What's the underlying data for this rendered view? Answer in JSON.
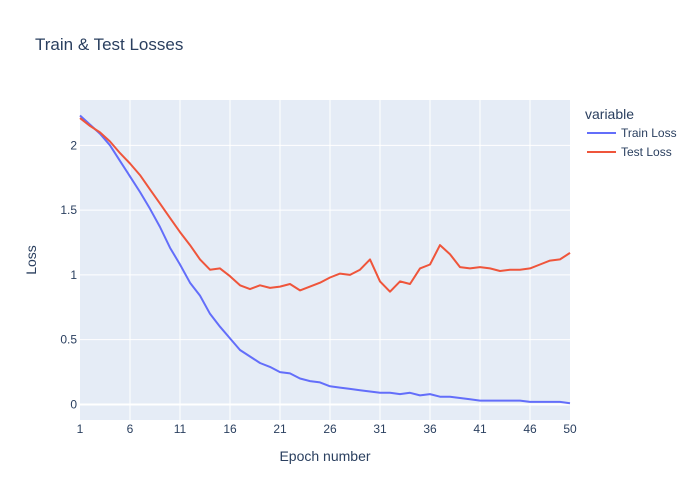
{
  "chart_data": {
    "type": "line",
    "title": "Train & Test Losses",
    "xlabel": "Epoch number",
    "ylabel": "Loss",
    "xlim": [
      1,
      50
    ],
    "ylim": [
      -0.12,
      2.35
    ],
    "xticks": [
      1,
      6,
      11,
      16,
      21,
      26,
      31,
      36,
      41,
      46,
      50
    ],
    "xtick_labels": [
      "1",
      "6",
      "11",
      "16",
      "21",
      "26",
      "31",
      "36",
      "41",
      "46",
      "50"
    ],
    "yticks": [
      0,
      0.5,
      1,
      1.5,
      2
    ],
    "ytick_labels": [
      "0",
      "0.5",
      "1",
      "1.5",
      "2"
    ],
    "grid": true,
    "legend": {
      "title": "variable",
      "placement": "top-right-outside"
    },
    "x": [
      1,
      2,
      3,
      4,
      5,
      6,
      7,
      8,
      9,
      10,
      11,
      12,
      13,
      14,
      15,
      16,
      17,
      18,
      19,
      20,
      21,
      22,
      23,
      24,
      25,
      26,
      27,
      28,
      29,
      30,
      31,
      32,
      33,
      34,
      35,
      36,
      37,
      38,
      39,
      40,
      41,
      42,
      43,
      44,
      45,
      46,
      47,
      48,
      49,
      50
    ],
    "series": [
      {
        "name": "Train Loss",
        "color": "#636efa",
        "values": [
          2.23,
          2.16,
          2.09,
          2.0,
          1.88,
          1.76,
          1.64,
          1.51,
          1.37,
          1.21,
          1.08,
          0.94,
          0.84,
          0.7,
          0.6,
          0.51,
          0.42,
          0.37,
          0.32,
          0.29,
          0.25,
          0.24,
          0.2,
          0.18,
          0.17,
          0.14,
          0.13,
          0.12,
          0.11,
          0.1,
          0.09,
          0.09,
          0.08,
          0.09,
          0.07,
          0.08,
          0.06,
          0.06,
          0.05,
          0.04,
          0.03,
          0.03,
          0.03,
          0.03,
          0.03,
          0.02,
          0.02,
          0.02,
          0.02,
          0.01
        ]
      },
      {
        "name": "Test Loss",
        "color": "#ef553b",
        "values": [
          2.21,
          2.15,
          2.1,
          2.03,
          1.94,
          1.86,
          1.77,
          1.66,
          1.55,
          1.44,
          1.33,
          1.23,
          1.12,
          1.04,
          1.05,
          0.99,
          0.92,
          0.89,
          0.92,
          0.9,
          0.91,
          0.93,
          0.88,
          0.91,
          0.94,
          0.98,
          1.01,
          1.0,
          1.04,
          1.12,
          0.95,
          0.87,
          0.95,
          0.93,
          1.05,
          1.08,
          1.23,
          1.16,
          1.06,
          1.05,
          1.06,
          1.05,
          1.03,
          1.04,
          1.04,
          1.05,
          1.08,
          1.11,
          1.12,
          1.17
        ]
      }
    ]
  }
}
